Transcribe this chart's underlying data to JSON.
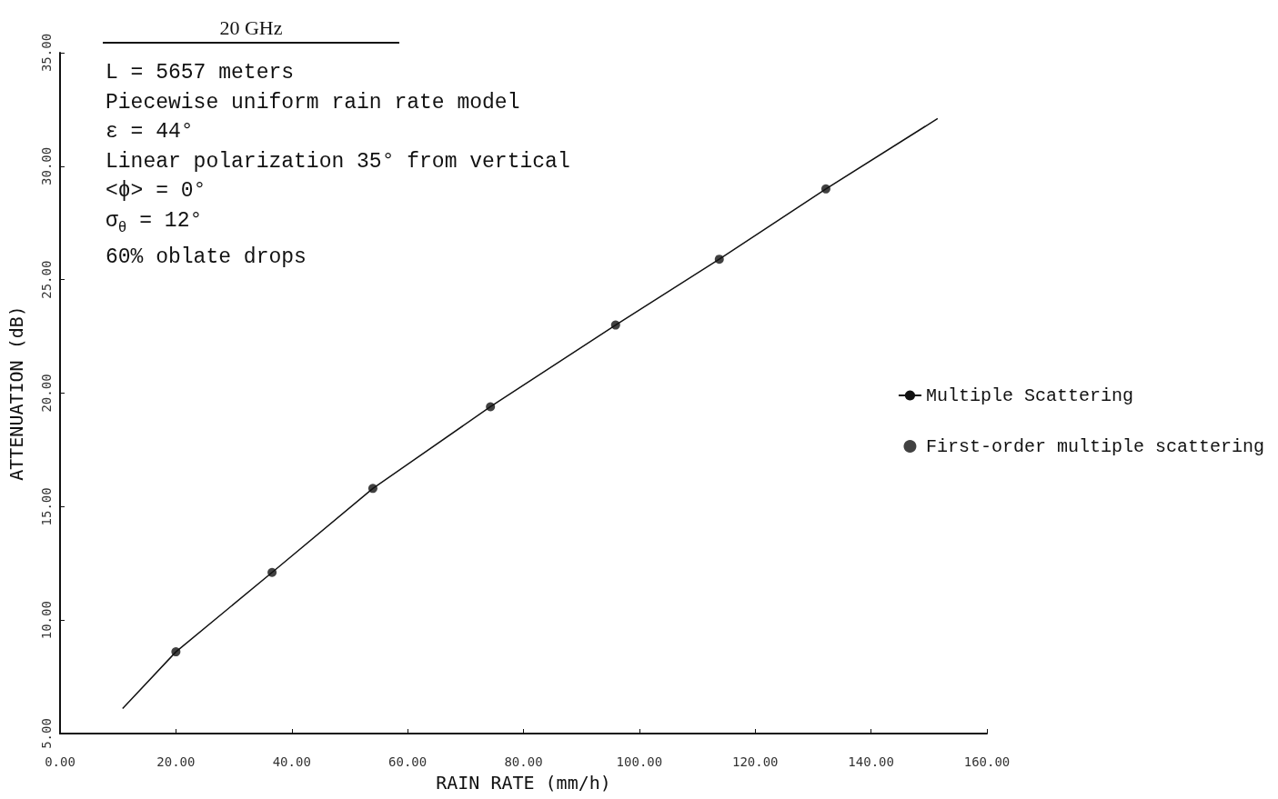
{
  "chart_data": {
    "type": "scatter",
    "title": "20 GHz",
    "xlabel": "RAIN RATE (mm/h)",
    "ylabel": "ATTENUATION (dB)",
    "annotations": [
      "L = 5657 meters",
      "Piecewise uniform rain rate model",
      "ε = 44°",
      "Linear polarization 35° from vertical",
      "<ϕ> = 0°",
      "σ$_{θ}$ = 12°",
      "60% oblate drops"
    ],
    "series": [
      {
        "name": "Multiple Scattering",
        "type": "line",
        "marker": "none",
        "color": "#111111",
        "x": [
          10.8,
          20,
          36.6,
          54,
          74.3,
          95.9,
          113.8,
          132.2,
          151.5
        ],
        "values": [
          6.1,
          8.6,
          12.1,
          15.8,
          19.4,
          23.0,
          25.9,
          29.0,
          32.1
        ]
      },
      {
        "name": "First-order multiple scattering",
        "marker": "circle",
        "color": "#111111",
        "x": [
          20,
          36.6,
          54,
          74.3,
          95.9,
          113.8,
          132.2
        ],
        "values": [
          8.6,
          12.1,
          15.8,
          19.4,
          23.0,
          25.9,
          29.0
        ]
      }
    ],
    "xlim": [
      0,
      160
    ],
    "xticks": [
      {
        "value": 0,
        "label": "0.00"
      },
      {
        "value": 20,
        "label": "20.00"
      },
      {
        "value": 40,
        "label": "40.00"
      },
      {
        "value": 60,
        "label": "60.00"
      },
      {
        "value": 80,
        "label": "80.00"
      },
      {
        "value": 100,
        "label": "100.00"
      },
      {
        "value": 120,
        "label": "120.00"
      },
      {
        "value": 140,
        "label": "140.00"
      },
      {
        "value": 160,
        "label": "160.00"
      }
    ],
    "ylim": [
      5,
      35
    ],
    "yticks": [
      {
        "value": 5,
        "label": "5.00"
      },
      {
        "value": 10,
        "label": "10.00"
      },
      {
        "value": 15,
        "label": "15.00"
      },
      {
        "value": 20,
        "label": "20.00"
      },
      {
        "value": 25,
        "label": "25.00"
      },
      {
        "value": 30,
        "label": "30.00"
      },
      {
        "value": 35,
        "label": "35.00"
      }
    ],
    "grid": false,
    "legend": "right"
  }
}
